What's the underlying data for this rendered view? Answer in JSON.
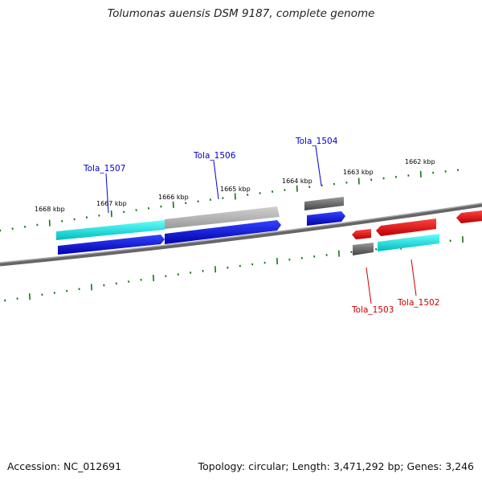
{
  "title": "Tolumonas auensis DSM 9187, complete genome",
  "accession": "Accession: NC_012691",
  "summary": "Topology: circular; Length: 3,471,292 bp; Genes: 3,246",
  "scale_labels": [
    "1668 kbp",
    "1667 kbp",
    "1666 kbp",
    "1665 kbp",
    "1664 kbp",
    "1663 kbp",
    "1662 kbp"
  ],
  "gene_labels": {
    "tola_1507": "Tola_1507",
    "tola_1506": "Tola_1506",
    "tola_1504": "Tola_1504",
    "tola_1503": "Tola_1503",
    "tola_1502": "Tola_1502"
  },
  "colors": {
    "forward_gene": "#0000dd",
    "reverse_gene": "#ee0000",
    "forward_cds": "#00ffff",
    "reverse_cds": "#00ffff",
    "ticks": "#117711",
    "backbone": "#777777"
  }
}
